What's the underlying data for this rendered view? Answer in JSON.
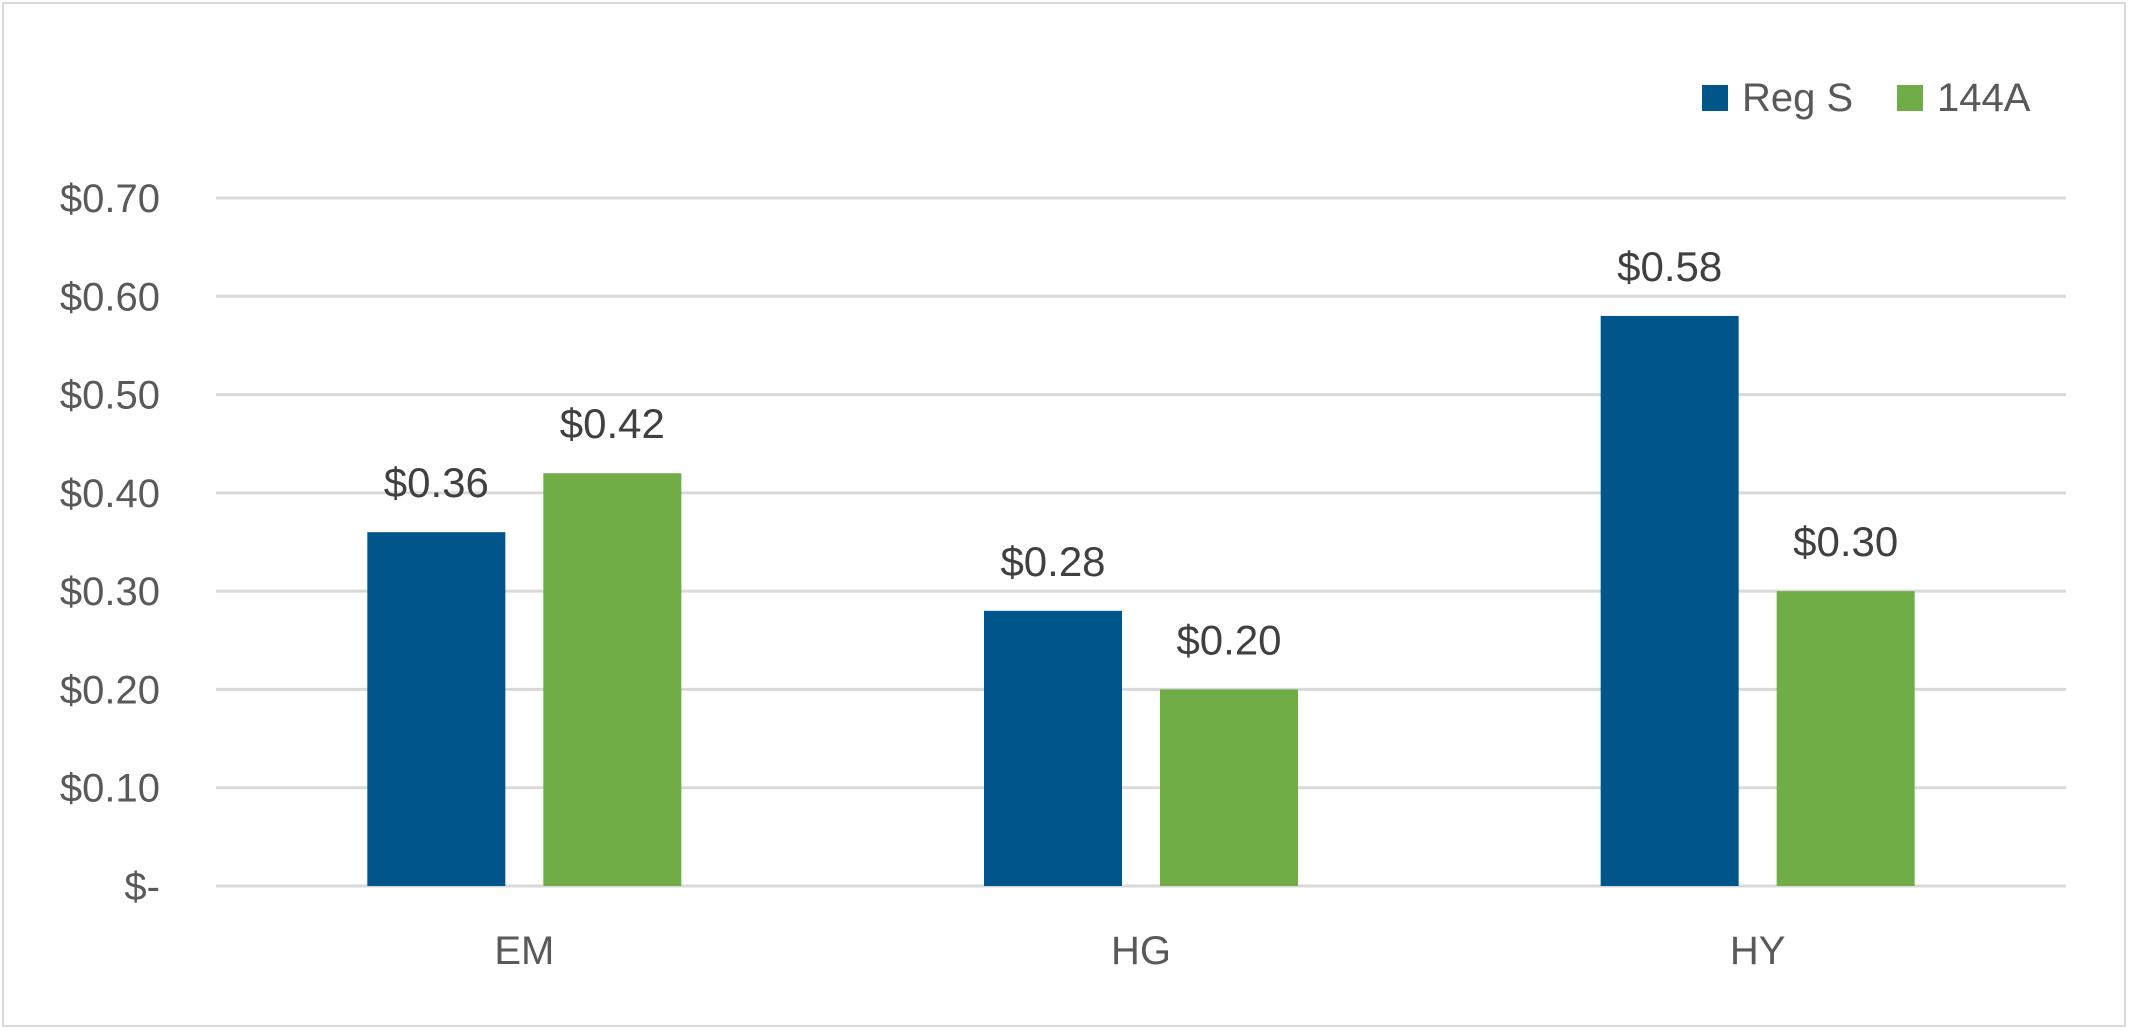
{
  "chart_data": {
    "type": "bar",
    "title": "",
    "xlabel": "",
    "ylabel": "",
    "categories": [
      "EM",
      "HG",
      "HY"
    ],
    "series": [
      {
        "name": "Reg S",
        "color": "#00558a",
        "values": [
          0.36,
          0.28,
          0.58
        ],
        "labels": [
          "$0.36",
          "$0.28",
          "$0.58"
        ]
      },
      {
        "name": "144A",
        "color": "#70ad47",
        "values": [
          0.42,
          0.2,
          0.3
        ],
        "labels": [
          "$0.42",
          "$0.20",
          "$0.30"
        ]
      }
    ],
    "ylim": [
      0,
      0.7
    ],
    "yticks": [
      0,
      0.1,
      0.2,
      0.3,
      0.4,
      0.5,
      0.6,
      0.7
    ],
    "ytick_labels": [
      "$-",
      "$0.10",
      "$0.20",
      "$0.30",
      "$0.40",
      "$0.50",
      "$0.60",
      "$0.70"
    ],
    "grid": true,
    "legend_position": "top-right"
  }
}
